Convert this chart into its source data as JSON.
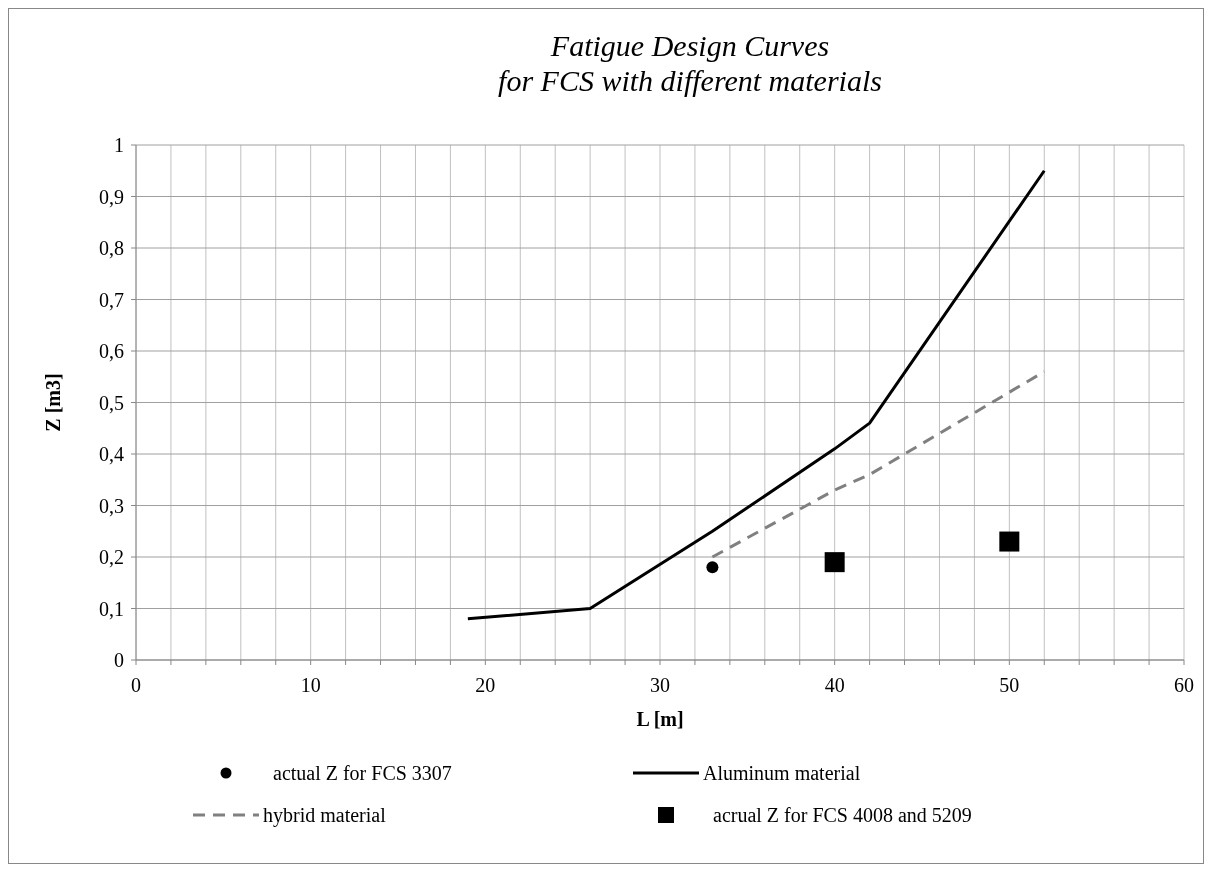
{
  "chart_data": {
    "type": "line",
    "title": "Fatigue Design Curves\nfor FCS with different materials",
    "xlabel": "L [m]",
    "ylabel": "Z [m3]",
    "xlim": [
      0,
      60
    ],
    "ylim": [
      0,
      1
    ],
    "xticks": [
      0,
      {
        "value": 2,
        "label": null
      },
      {
        "value": 4,
        "label": null
      },
      {
        "value": 6,
        "label": null
      },
      {
        "value": 8,
        "label": null
      },
      10,
      {
        "value": 12,
        "label": null
      },
      {
        "value": 14,
        "label": null
      },
      {
        "value": 16,
        "label": null
      },
      {
        "value": 18,
        "label": null
      },
      20,
      {
        "value": 22,
        "label": null
      },
      {
        "value": 24,
        "label": null
      },
      {
        "value": 26,
        "label": null
      },
      {
        "value": 28,
        "label": null
      },
      30,
      {
        "value": 32,
        "label": null
      },
      {
        "value": 34,
        "label": null
      },
      {
        "value": 36,
        "label": null
      },
      {
        "value": 38,
        "label": null
      },
      40,
      {
        "value": 42,
        "label": null
      },
      {
        "value": 44,
        "label": null
      },
      {
        "value": 46,
        "label": null
      },
      {
        "value": 48,
        "label": null
      },
      50,
      {
        "value": 52,
        "label": null
      },
      {
        "value": 54,
        "label": null
      },
      {
        "value": 56,
        "label": null
      },
      {
        "value": 58,
        "label": null
      },
      60
    ],
    "yticks": [
      0,
      {
        "value": 0.1,
        "label": "0,1"
      },
      {
        "value": 0.2,
        "label": "0,2"
      },
      {
        "value": 0.3,
        "label": "0,3"
      },
      {
        "value": 0.4,
        "label": "0,4"
      },
      {
        "value": 0.5,
        "label": "0,5"
      },
      {
        "value": 0.6,
        "label": "0,6"
      },
      {
        "value": 0.7,
        "label": "0,7"
      },
      {
        "value": 0.8,
        "label": "0,8"
      },
      {
        "value": 0.9,
        "label": "0,9"
      },
      1
    ],
    "grid": true,
    "legend": "bottom",
    "series": [
      {
        "name": "actual Z for FCS 3307",
        "type": "scatter",
        "marker": "circle",
        "color": "#000000",
        "x": [
          33
        ],
        "values": [
          0.18
        ]
      },
      {
        "name": "Aluminum material",
        "line_style": "solid",
        "color": "#000000",
        "x": [
          19,
          26,
          33,
          40,
          42,
          52
        ],
        "values": [
          0.08,
          0.1,
          0.25,
          0.41,
          0.46,
          0.95
        ]
      },
      {
        "name": "hybrid material",
        "line_style": "dashed",
        "color": "#808080",
        "x": [
          33,
          40,
          42,
          52
        ],
        "values": [
          0.2,
          0.33,
          0.36,
          0.56
        ]
      },
      {
        "name": "acrual Z for FCS 4008 and 5209",
        "type": "scatter",
        "marker": "square",
        "color": "#000000",
        "x": [
          40,
          50
        ],
        "values": [
          0.19,
          0.23
        ]
      }
    ]
  }
}
